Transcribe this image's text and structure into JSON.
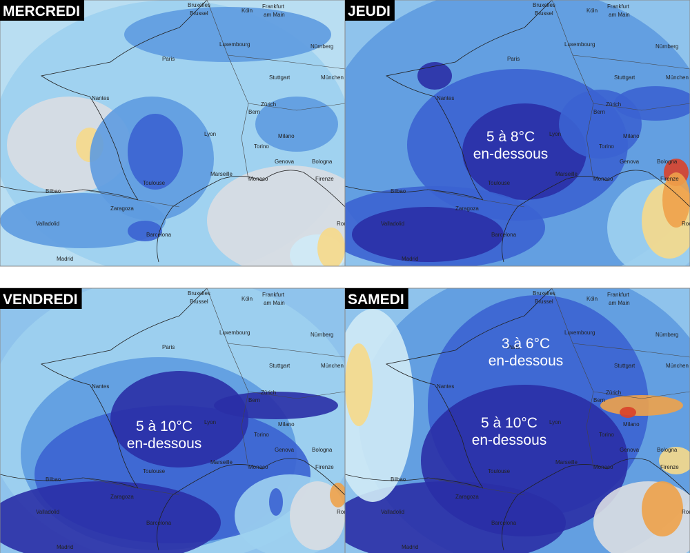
{
  "panels": [
    {
      "title": "MERCREDI",
      "annotations": []
    },
    {
      "title": "JEUDI",
      "annotations": [
        {
          "lines": [
            "5 à 8°C",
            "en-dessous"
          ]
        }
      ]
    },
    {
      "title": "VENDREDI",
      "annotations": [
        {
          "lines": [
            "5 à 10°C",
            "en-dessous"
          ]
        }
      ]
    },
    {
      "title": "SAMEDI",
      "annotations": [
        {
          "lines": [
            "3 à 6°C",
            "en-dessous"
          ]
        },
        {
          "lines": [
            "5 à 10°C",
            "en-dessous"
          ]
        }
      ]
    }
  ],
  "cities": [
    "Bruxelles",
    "Brussel",
    "Köln",
    "Frankfurt",
    "am Main",
    "Luxembourg",
    "Nürnberg",
    "Paris",
    "Stuttgart",
    "München",
    "Nantes",
    "Zürich",
    "Bern",
    "Lyon",
    "Milano",
    "Torino",
    "Genova",
    "Bologna",
    "Firenze",
    "Monaco",
    "Marseille",
    "Toulouse",
    "Bilbao",
    "Zaragoza",
    "Barcelona",
    "Valladolid",
    "Madrid",
    "Roma"
  ]
}
